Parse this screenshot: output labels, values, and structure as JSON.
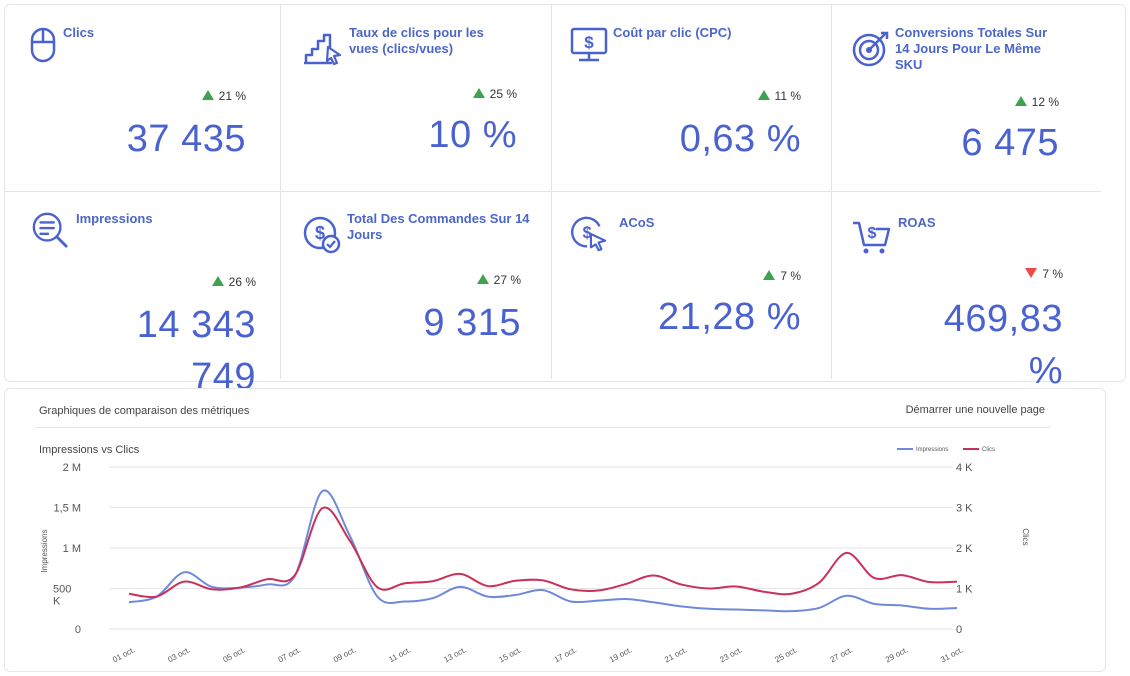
{
  "kpis": [
    {
      "title": "Clics",
      "delta": "21 %",
      "direction": "up",
      "value": "37 435",
      "icon": "mouse-icon"
    },
    {
      "title": "Taux de clics pour les vues (clics/vues)",
      "delta": "25 %",
      "direction": "up",
      "value": "10 %",
      "icon": "chart-cursor-icon"
    },
    {
      "title": "Coût par clic (CPC)",
      "delta": "11 %",
      "direction": "up",
      "value": "0,63 %",
      "icon": "monitor-dollar-icon"
    },
    {
      "title": "Conversions Totales Sur 14 Jours Pour Le Même SKU",
      "delta": "12 %",
      "direction": "up",
      "value": "6 475",
      "icon": "target-icon"
    },
    {
      "title": "Impressions",
      "delta": "26 %",
      "direction": "up",
      "value": "14 343 749",
      "icon": "search-doc-icon"
    },
    {
      "title": "Total Des Commandes Sur 14 Jours",
      "delta": "27 %",
      "direction": "up",
      "value": "9 315",
      "icon": "dollar-check-icon"
    },
    {
      "title": "ACoS",
      "delta": "7 %",
      "direction": "up",
      "value": "21,28 %",
      "icon": "dollar-cursor-icon"
    },
    {
      "title": "ROAS",
      "delta": "7 %",
      "direction": "down",
      "value": "469,83 %",
      "icon": "cart-dollar-icon"
    }
  ],
  "chart_panel": {
    "title": "Graphiques de comparaison des métriques",
    "new_page_label": "Démarrer une nouvelle page"
  },
  "colors": {
    "accent": "#4a62d0",
    "impressions_line": "#6f8ad8",
    "clics_line": "#c8315b",
    "up": "#3fa34d",
    "down": "#ef4646"
  },
  "chart_data": {
    "type": "line",
    "title": "Impressions vs Clics",
    "ylabel": "Impressions",
    "y2label": "Clics",
    "x": [
      "01 oct.",
      "02 oct.",
      "03 oct.",
      "04 oct.",
      "05 oct.",
      "06 oct.",
      "07 oct.",
      "08 oct.",
      "09 oct.",
      "10 oct.",
      "11 oct.",
      "12 oct.",
      "13 oct.",
      "14 oct.",
      "15 oct.",
      "16 oct.",
      "17 oct.",
      "18 oct.",
      "19 oct.",
      "20 oct.",
      "21 oct.",
      "22 oct.",
      "23 oct.",
      "24 oct.",
      "25 oct.",
      "26 oct.",
      "27 oct.",
      "28 oct.",
      "29 oct.",
      "30 oct.",
      "31 oct."
    ],
    "x_tick_labels": [
      "01 oct.",
      "03 oct.",
      "05 oct.",
      "07 oct.",
      "09 oct.",
      "11 oct.",
      "13 oct.",
      "15 oct.",
      "17 oct.",
      "19 oct.",
      "21 oct.",
      "23 oct.",
      "25 oct.",
      "27 oct.",
      "29 oct.",
      "31 oct."
    ],
    "ylim": [
      0,
      2000000
    ],
    "y_ticks": [
      "2 M",
      "1,5 M",
      "1 M",
      "500 K",
      "0"
    ],
    "y2lim": [
      0,
      4000
    ],
    "y2_ticks": [
      "4 K",
      "3 K",
      "2 K",
      "1 K",
      "0"
    ],
    "legend_position": "top-right",
    "grid": true,
    "series": [
      {
        "name": "Impressions",
        "axis": "left",
        "values": [
          330000,
          400000,
          700000,
          520000,
          510000,
          550000,
          650000,
          1700000,
          1150000,
          400000,
          340000,
          380000,
          520000,
          400000,
          420000,
          480000,
          340000,
          350000,
          370000,
          330000,
          280000,
          250000,
          240000,
          230000,
          220000,
          260000,
          410000,
          310000,
          290000,
          250000,
          260000
        ]
      },
      {
        "name": "Clics",
        "axis": "right",
        "values": [
          870,
          800,
          1170,
          980,
          1020,
          1230,
          1320,
          2980,
          2180,
          1030,
          1130,
          1180,
          1360,
          1060,
          1190,
          1200,
          980,
          950,
          1110,
          1320,
          1100,
          1000,
          1050,
          920,
          870,
          1140,
          1880,
          1260,
          1330,
          1160,
          1170
        ]
      }
    ]
  }
}
